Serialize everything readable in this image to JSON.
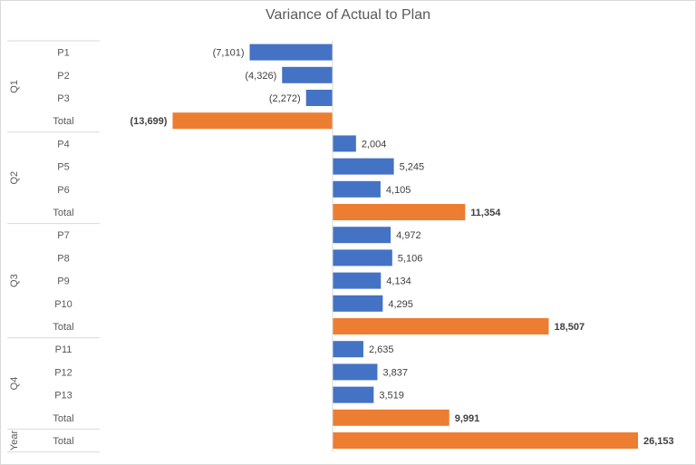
{
  "chart_data": {
    "type": "bar",
    "orientation": "horizontal",
    "title": "Variance of Actual to Plan",
    "groups": [
      {
        "label": "Q1",
        "categories": [
          "P1",
          "P2",
          "P3",
          "Total"
        ],
        "values": [
          -7101,
          -4326,
          -2272,
          -13699
        ],
        "labels": [
          "(7,101)",
          "(4,326)",
          "(2,272)",
          "(13,699)"
        ]
      },
      {
        "label": "Q2",
        "categories": [
          "P4",
          "P5",
          "P6",
          "Total"
        ],
        "values": [
          2004,
          5245,
          4105,
          11354
        ],
        "labels": [
          "2,004",
          "5,245",
          "4,105",
          "11,354"
        ]
      },
      {
        "label": "Q3",
        "categories": [
          "P7",
          "P8",
          "P9",
          "P10",
          "Total"
        ],
        "values": [
          4972,
          5106,
          4134,
          4295,
          18507
        ],
        "labels": [
          "4,972",
          "5,106",
          "4,134",
          "4,295",
          "18,507"
        ]
      },
      {
        "label": "Q4",
        "categories": [
          "P11",
          "P12",
          "P13",
          "Total"
        ],
        "values": [
          2635,
          3837,
          3519,
          9991
        ],
        "labels": [
          "2,635",
          "3,837",
          "3,519",
          "9,991"
        ]
      },
      {
        "label": "Year",
        "categories": [
          "Total"
        ],
        "values": [
          26153
        ],
        "labels": [
          "26,153"
        ]
      }
    ],
    "colors": {
      "period": "#4472c4",
      "total": "#ed7d31"
    },
    "grid": false,
    "legend": "none"
  }
}
